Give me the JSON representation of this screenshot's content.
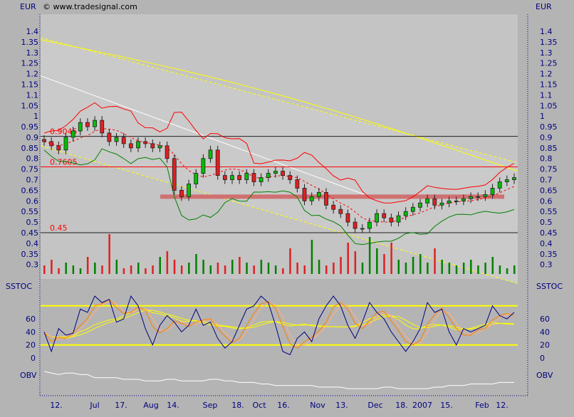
{
  "header": {
    "currency_left": "EUR",
    "currency_right": "EUR",
    "copyright": "© www.tradesignal.com"
  },
  "chart_data": [
    {
      "type": "candlestick",
      "ylabel": "EUR",
      "ylim": [
        0.26,
        1.45
      ],
      "yticks": [
        "1.4",
        "1.35",
        "1.3",
        "1.25",
        "1.2",
        "1.15",
        "1.1",
        "1.05",
        "1",
        "0.95",
        "0.9",
        "0.85",
        "0.8",
        "0.75",
        "0.7",
        "0.65",
        "0.6",
        "0.55",
        "0.5",
        "0.45",
        "0.4",
        "0.35",
        "0.3"
      ],
      "xticks": [
        "12.",
        "Jul",
        "17.",
        "Aug",
        "14.",
        "Sep",
        "18.",
        "Oct",
        "16.",
        "Nov",
        "13.",
        "Dec",
        "18.",
        "2007",
        "15.",
        "Feb",
        "12."
      ],
      "close": [
        0.88,
        0.86,
        0.84,
        0.9,
        0.93,
        0.97,
        0.95,
        0.98,
        0.92,
        0.88,
        0.9,
        0.87,
        0.85,
        0.88,
        0.87,
        0.85,
        0.86,
        0.8,
        0.65,
        0.62,
        0.68,
        0.73,
        0.8,
        0.84,
        0.72,
        0.7,
        0.72,
        0.7,
        0.73,
        0.69,
        0.71,
        0.73,
        0.74,
        0.72,
        0.7,
        0.66,
        0.6,
        0.62,
        0.64,
        0.58,
        0.56,
        0.54,
        0.5,
        0.47,
        0.47,
        0.5,
        0.54,
        0.52,
        0.5,
        0.53,
        0.55,
        0.57,
        0.59,
        0.61,
        0.58,
        0.59,
        0.6,
        0.6,
        0.61,
        0.62,
        0.62,
        0.63,
        0.66,
        0.69,
        0.7,
        0.71
      ],
      "volume": [
        3,
        5,
        2,
        4,
        3,
        2,
        6,
        4,
        3,
        14,
        5,
        2,
        3,
        4,
        2,
        3,
        6,
        8,
        5,
        3,
        4,
        7,
        5,
        3,
        4,
        3,
        5,
        6,
        4,
        3,
        5,
        4,
        3,
        2,
        9,
        4,
        3,
        12,
        5,
        3,
        4,
        6,
        11,
        8,
        4,
        13,
        9,
        7,
        11,
        5,
        4,
        6,
        7,
        4,
        9,
        5,
        4,
        3,
        4,
        5,
        3,
        4,
        6,
        3,
        2,
        3
      ],
      "horizontal_lines": [
        {
          "value": 0.9045,
          "label": "0.9045"
        },
        {
          "value": 0.7605,
          "label": "0.7605"
        },
        {
          "value": 0.45,
          "label": "0.45"
        }
      ],
      "support_zone": 0.62,
      "colors": {
        "up": "#00c000",
        "down": "#e02020",
        "hline": "#ff0000",
        "channel": "#ffff00",
        "band_upper": "#ff0000",
        "band_lower": "#008000"
      }
    },
    {
      "type": "line",
      "label": "SSTOC",
      "ylim": [
        0,
        100
      ],
      "yticks": [
        "60",
        "40",
        "20",
        "0"
      ],
      "levels": [
        80,
        20
      ],
      "k": [
        40,
        10,
        45,
        35,
        38,
        75,
        70,
        95,
        85,
        90,
        55,
        60,
        95,
        80,
        45,
        20,
        50,
        65,
        55,
        40,
        50,
        75,
        50,
        55,
        30,
        15,
        25,
        50,
        75,
        80,
        95,
        85,
        50,
        10,
        5,
        30,
        40,
        25,
        60,
        80,
        95,
        80,
        50,
        30,
        55,
        85,
        70,
        60,
        40,
        25,
        10,
        25,
        45,
        85,
        70,
        75,
        40,
        20,
        45,
        40,
        45,
        50,
        80,
        65,
        60,
        70
      ],
      "colors": {
        "k": "#000080",
        "d": "#ff8000",
        "slow": "#ffff00"
      }
    },
    {
      "type": "line",
      "label": "OBV",
      "values": [
        10,
        9,
        8,
        9,
        9,
        8,
        8,
        6,
        6,
        6,
        6,
        5,
        5,
        5,
        4,
        4,
        4,
        5,
        5,
        4,
        4,
        4,
        4,
        5,
        5,
        4,
        4,
        3,
        3,
        3,
        2,
        2,
        1,
        1,
        1,
        1,
        1,
        1,
        0,
        0,
        0,
        0,
        -1,
        -1,
        -1,
        -1,
        -1,
        0,
        0,
        -1,
        -1,
        -1,
        -1,
        -1,
        0,
        0,
        1,
        1,
        1,
        2,
        2,
        2,
        2,
        3,
        3,
        3
      ]
    }
  ]
}
